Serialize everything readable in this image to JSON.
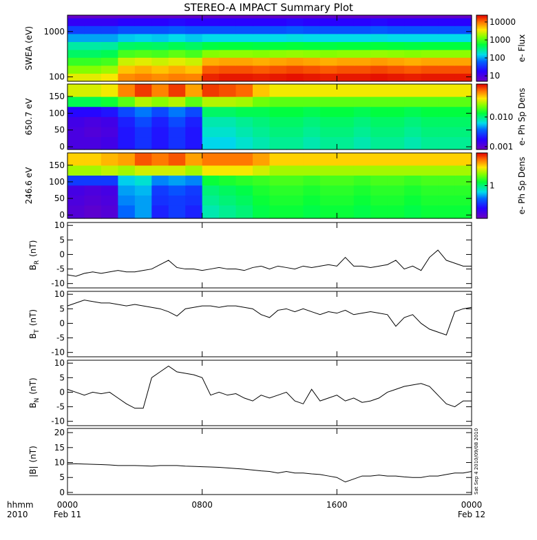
{
  "title": "STEREO-A IMPACT Summary Plot",
  "timestamp": "Sat Sep  4 2010/09/08 2010",
  "x_axis": {
    "xlim": [
      0,
      24
    ],
    "xticks": [
      {
        "value": 0,
        "label": "0000"
      },
      {
        "value": 8,
        "label": "0800"
      },
      {
        "value": 16,
        "label": "1600"
      },
      {
        "value": 24,
        "label": "0000"
      }
    ],
    "date_labels": [
      {
        "value": 0,
        "label": "Feb 11"
      },
      {
        "value": 24,
        "label": "Feb 12"
      }
    ],
    "label_lines": [
      "hhmm",
      "2010"
    ]
  },
  "chart_data": [
    {
      "type": "heatmap",
      "ylabel": "SWEA (eV)",
      "log_y": true,
      "ylim": [
        80,
        2300
      ],
      "yticks": [
        100,
        1000
      ],
      "x_edges": [
        0,
        1,
        2,
        3,
        4,
        5,
        6,
        7,
        8,
        9,
        10,
        11,
        12,
        13,
        14,
        15,
        16,
        17,
        18,
        19,
        20,
        21,
        22,
        23,
        24
      ],
      "y_edges": [
        80,
        120,
        180,
        270,
        400,
        600,
        900,
        1350,
        2000,
        2300
      ],
      "z": [
        [
          3000,
          3000,
          3500,
          8000,
          9000,
          8000,
          9000,
          8500,
          18000,
          20000,
          20000,
          19000,
          20000,
          21000,
          20000,
          19000,
          20000,
          20000,
          21000,
          20000,
          19000,
          20000,
          20000,
          20000
        ],
        [
          1500,
          1500,
          1800,
          5000,
          6000,
          5000,
          6000,
          5000,
          12000,
          13000,
          13000,
          12000,
          13000,
          14000,
          13000,
          12000,
          13000,
          13000,
          14000,
          13000,
          12000,
          13000,
          13000,
          13000
        ],
        [
          800,
          800,
          900,
          2500,
          3000,
          2500,
          3000,
          2500,
          6000,
          6500,
          6500,
          6000,
          6500,
          7000,
          6500,
          6000,
          6500,
          6500,
          7000,
          6500,
          6000,
          6500,
          6500,
          6500
        ],
        [
          400,
          400,
          450,
          900,
          1000,
          900,
          1100,
          900,
          1500,
          1600,
          1600,
          1500,
          1600,
          1700,
          1600,
          1500,
          1600,
          1600,
          1700,
          1600,
          1500,
          1600,
          1600,
          1600
        ],
        [
          250,
          250,
          260,
          400,
          420,
          400,
          450,
          400,
          500,
          520,
          520,
          500,
          520,
          540,
          520,
          500,
          520,
          520,
          540,
          520,
          500,
          520,
          520,
          520
        ],
        [
          100,
          100,
          100,
          130,
          140,
          130,
          150,
          130,
          150,
          150,
          150,
          150,
          150,
          160,
          150,
          150,
          150,
          150,
          160,
          150,
          150,
          150,
          150,
          150
        ],
        [
          40,
          40,
          40,
          50,
          50,
          50,
          55,
          50,
          50,
          50,
          50,
          50,
          50,
          55,
          50,
          50,
          50,
          50,
          55,
          50,
          50,
          50,
          50,
          50
        ],
        [
          15,
          15,
          15,
          18,
          18,
          18,
          20,
          18,
          18,
          18,
          18,
          18,
          18,
          20,
          18,
          18,
          18,
          18,
          20,
          18,
          18,
          18,
          18,
          18
        ],
        [
          6,
          6,
          6,
          6,
          6,
          6,
          6,
          6,
          6,
          6,
          6,
          6,
          6,
          6,
          6,
          6,
          6,
          6,
          6,
          6,
          6,
          6,
          6,
          6
        ]
      ],
      "colorbar": {
        "label": "e- Flux",
        "log": true,
        "clim": [
          5,
          24000
        ],
        "ticks": [
          10,
          100,
          1000,
          10000
        ]
      }
    },
    {
      "type": "heatmap",
      "ylabel": "650.7 eV",
      "log_y": false,
      "ylim": [
        -8,
        187
      ],
      "yticks": [
        0,
        50,
        100,
        150
      ],
      "x_edges": [
        0,
        1,
        2,
        3,
        4,
        5,
        6,
        7,
        8,
        9,
        10,
        11,
        12,
        13,
        14,
        15,
        16,
        17,
        18,
        19,
        20,
        21,
        22,
        23,
        24
      ],
      "y_edges": [
        -8,
        30,
        60,
        90,
        120,
        150,
        187
      ],
      "z": [
        [
          0.0012,
          0.0012,
          0.0013,
          0.002,
          0.0025,
          0.002,
          0.0025,
          0.002,
          0.006,
          0.006,
          0.007,
          0.008,
          0.009,
          0.009,
          0.008,
          0.009,
          0.009,
          0.008,
          0.009,
          0.009,
          0.008,
          0.009,
          0.009,
          0.009
        ],
        [
          0.0012,
          0.0011,
          0.0012,
          0.002,
          0.0025,
          0.002,
          0.0025,
          0.002,
          0.007,
          0.007,
          0.008,
          0.009,
          0.01,
          0.01,
          0.009,
          0.01,
          0.01,
          0.009,
          0.01,
          0.01,
          0.009,
          0.01,
          0.01,
          0.01
        ],
        [
          0.0013,
          0.0012,
          0.0013,
          0.0022,
          0.003,
          0.0022,
          0.003,
          0.0022,
          0.008,
          0.008,
          0.009,
          0.01,
          0.011,
          0.011,
          0.01,
          0.011,
          0.011,
          0.01,
          0.011,
          0.011,
          0.01,
          0.011,
          0.011,
          0.011
        ],
        [
          0.0018,
          0.0018,
          0.002,
          0.003,
          0.004,
          0.003,
          0.004,
          0.003,
          0.011,
          0.011,
          0.012,
          0.012,
          0.013,
          0.013,
          0.012,
          0.013,
          0.013,
          0.012,
          0.013,
          0.013,
          0.012,
          0.013,
          0.013,
          0.013
        ],
        [
          0.012,
          0.012,
          0.014,
          0.02,
          0.03,
          0.025,
          0.03,
          0.02,
          0.03,
          0.03,
          0.028,
          0.022,
          0.02,
          0.02,
          0.02,
          0.02,
          0.02,
          0.02,
          0.02,
          0.02,
          0.02,
          0.02,
          0.02,
          0.02
        ],
        [
          0.035,
          0.035,
          0.04,
          0.07,
          0.1,
          0.07,
          0.1,
          0.06,
          0.1,
          0.09,
          0.08,
          0.05,
          0.04,
          0.04,
          0.04,
          0.04,
          0.04,
          0.04,
          0.04,
          0.04,
          0.04,
          0.04,
          0.04,
          0.04
        ]
      ],
      "colorbar": {
        "label": "e- Ph Sp Dens",
        "log": true,
        "clim": [
          0.0008,
          0.13
        ],
        "ticks": [
          0.001,
          {
            "value": 0.01,
            "label": "0.010"
          }
        ]
      }
    },
    {
      "type": "heatmap",
      "ylabel": "246.6 eV",
      "log_y": false,
      "ylim": [
        -10,
        187
      ],
      "yticks": [
        0,
        50,
        100,
        150
      ],
      "x_edges": [
        0,
        1,
        2,
        3,
        4,
        5,
        6,
        7,
        8,
        9,
        10,
        11,
        12,
        13,
        14,
        15,
        16,
        17,
        18,
        19,
        20,
        21,
        22,
        23,
        24
      ],
      "y_edges": [
        -10,
        30,
        60,
        90,
        120,
        150,
        187
      ],
      "z": [
        [
          0.13,
          0.12,
          0.13,
          0.4,
          0.5,
          0.25,
          0.3,
          0.25,
          0.8,
          0.9,
          1.0,
          1.2,
          1.3,
          1.3,
          1.2,
          1.3,
          1.3,
          1.2,
          1.3,
          1.3,
          1.2,
          1.3,
          1.3,
          1.3
        ],
        [
          0.14,
          0.13,
          0.14,
          0.45,
          0.5,
          0.28,
          0.3,
          0.28,
          0.9,
          1.0,
          1.1,
          1.3,
          1.4,
          1.4,
          1.3,
          1.4,
          1.4,
          1.3,
          1.4,
          1.4,
          1.3,
          1.4,
          1.4,
          1.4
        ],
        [
          0.15,
          0.14,
          0.15,
          0.5,
          0.55,
          0.3,
          0.35,
          0.3,
          1.0,
          1.1,
          1.2,
          1.4,
          1.5,
          1.5,
          1.4,
          1.5,
          1.5,
          1.4,
          1.5,
          1.5,
          1.4,
          1.5,
          1.5,
          1.5
        ],
        [
          0.3,
          0.3,
          0.3,
          0.6,
          0.7,
          0.45,
          0.5,
          0.45,
          1.3,
          1.4,
          1.5,
          1.6,
          1.7,
          1.7,
          1.6,
          1.7,
          1.7,
          1.6,
          1.7,
          1.7,
          1.6,
          1.7,
          1.7,
          1.7
        ],
        [
          2.5,
          2.5,
          2.8,
          2.5,
          3,
          3,
          3,
          2.5,
          3.5,
          3.5,
          3.5,
          3,
          2.5,
          2.5,
          2.5,
          2.5,
          2.5,
          2.5,
          2.5,
          2.5,
          2.5,
          2.5,
          2.5,
          2.5
        ],
        [
          4,
          4,
          4.5,
          5,
          7,
          6,
          7,
          5,
          6,
          6,
          6,
          5,
          4,
          4,
          4,
          4,
          4,
          4,
          4,
          4,
          4,
          4,
          4,
          4
        ]
      ],
      "colorbar": {
        "label": "e- Ph Sp Dens",
        "log": true,
        "clim": [
          0.1,
          10
        ],
        "ticks": [
          1
        ]
      }
    },
    {
      "type": "line",
      "ylabel": "B",
      "ylabel_sub": "R",
      "ylabel_unit": "(nT)",
      "color": "#000000",
      "ylim": [
        -11.5,
        11
      ],
      "yticks": [
        -10,
        -5,
        0,
        5,
        10
      ],
      "x": [
        0,
        0.5,
        1,
        1.5,
        2,
        2.5,
        3,
        3.5,
        4,
        4.5,
        5,
        5.5,
        6,
        6.5,
        7,
        7.5,
        8,
        8.5,
        9,
        9.5,
        10,
        10.5,
        11,
        11.5,
        12,
        12.5,
        13,
        13.5,
        14,
        14.5,
        15,
        15.5,
        16,
        16.5,
        17,
        17.5,
        18,
        18.5,
        19,
        19.5,
        20,
        20.5,
        21,
        21.5,
        22,
        22.5,
        23,
        23.5,
        24
      ],
      "values": [
        -7,
        -7.5,
        -6.5,
        -6,
        -6.5,
        -6,
        -5.5,
        -6,
        -6,
        -5.5,
        -5,
        -3.5,
        -2,
        -4.5,
        -5,
        -5,
        -5.5,
        -5,
        -4.5,
        -5,
        -5,
        -5.5,
        -4.5,
        -4,
        -5,
        -4,
        -4.5,
        -5,
        -4,
        -4.5,
        -4,
        -3.5,
        -4,
        -1,
        -4,
        -4,
        -4.5,
        -4,
        -3.5,
        -2,
        -5,
        -4,
        -5.5,
        -1,
        1.5,
        -2,
        -3,
        -4,
        -4
      ]
    },
    {
      "type": "line",
      "ylabel": "B",
      "ylabel_sub": "T",
      "ylabel_unit": "(nT)",
      "color": "#000000",
      "ylim": [
        -11.5,
        11
      ],
      "yticks": [
        -10,
        -5,
        0,
        5,
        10
      ],
      "x": [
        0,
        0.5,
        1,
        1.5,
        2,
        2.5,
        3,
        3.5,
        4,
        4.5,
        5,
        5.5,
        6,
        6.5,
        7,
        7.5,
        8,
        8.5,
        9,
        9.5,
        10,
        10.5,
        11,
        11.5,
        12,
        12.5,
        13,
        13.5,
        14,
        14.5,
        15,
        15.5,
        16,
        16.5,
        17,
        17.5,
        18,
        18.5,
        19,
        19.5,
        20,
        20.5,
        21,
        21.5,
        22,
        22.5,
        23,
        23.5,
        24
      ],
      "values": [
        6,
        7,
        8,
        7.5,
        7,
        7,
        6.5,
        6,
        6.5,
        6,
        5.5,
        5,
        4,
        2.5,
        5,
        5.5,
        6,
        6,
        5.5,
        6,
        6,
        5.5,
        5,
        3,
        2,
        4.5,
        5,
        4,
        5,
        4,
        3,
        4,
        3.5,
        4.5,
        3,
        3.5,
        4,
        3.5,
        3,
        -1,
        2,
        3,
        0,
        -2,
        -3,
        -4,
        4,
        5,
        5.5
      ]
    },
    {
      "type": "line",
      "ylabel": "B",
      "ylabel_sub": "N",
      "ylabel_unit": "(nT)",
      "color": "#000000",
      "ylim": [
        -11.5,
        11
      ],
      "yticks": [
        -10,
        -5,
        0,
        5,
        10
      ],
      "x": [
        0,
        0.5,
        1,
        1.5,
        2,
        2.5,
        3,
        3.5,
        4,
        4.5,
        5,
        5.5,
        6,
        6.5,
        7,
        7.5,
        8,
        8.5,
        9,
        9.5,
        10,
        10.5,
        11,
        11.5,
        12,
        12.5,
        13,
        13.5,
        14,
        14.5,
        15,
        15.5,
        16,
        16.5,
        17,
        17.5,
        18,
        18.5,
        19,
        19.5,
        20,
        20.5,
        21,
        21.5,
        22,
        22.5,
        23,
        23.5,
        24
      ],
      "values": [
        1,
        0,
        -1,
        0,
        -0.5,
        0,
        -2,
        -4,
        -5.5,
        -5.5,
        5,
        7,
        9,
        7,
        6.5,
        6,
        5,
        -1,
        0,
        -1,
        -0.5,
        -2,
        -3,
        -1,
        -2,
        -1,
        0,
        -3,
        -4,
        1,
        -3,
        -2,
        -1,
        -3,
        -2,
        -3.5,
        -3,
        -2,
        0,
        1,
        2,
        2.5,
        3,
        2,
        -1,
        -4,
        -5,
        -3,
        -3
      ]
    },
    {
      "type": "line",
      "ylabel": "|B|",
      "ylabel_unit": "(nT)",
      "color": "#000000",
      "ylim": [
        -0.7,
        21.4
      ],
      "yticks": [
        0,
        5,
        10,
        15,
        20
      ],
      "x": [
        0,
        0.5,
        1,
        1.5,
        2,
        2.5,
        3,
        3.5,
        4,
        4.5,
        5,
        5.5,
        6,
        6.5,
        7,
        7.5,
        8,
        8.5,
        9,
        9.5,
        10,
        10.5,
        11,
        11.5,
        12,
        12.5,
        13,
        13.5,
        14,
        14.5,
        15,
        15.5,
        16,
        16.5,
        17,
        17.5,
        18,
        18.5,
        19,
        19.5,
        20,
        20.5,
        21,
        21.5,
        22,
        22.5,
        23,
        23.5,
        24
      ],
      "values": [
        9.5,
        9.6,
        9.5,
        9.4,
        9.3,
        9.2,
        9,
        9,
        9,
        8.9,
        8.8,
        9,
        9,
        9,
        8.8,
        8.7,
        8.6,
        8.5,
        8.4,
        8.2,
        8,
        7.8,
        7.5,
        7.2,
        7,
        6.5,
        7,
        6.5,
        6.5,
        6.2,
        6,
        5.5,
        5,
        3.5,
        4.5,
        5.5,
        5.5,
        5.8,
        5.5,
        5.5,
        5.2,
        5,
        5,
        5.5,
        5.5,
        6,
        6.5,
        6.5,
        7
      ]
    }
  ]
}
